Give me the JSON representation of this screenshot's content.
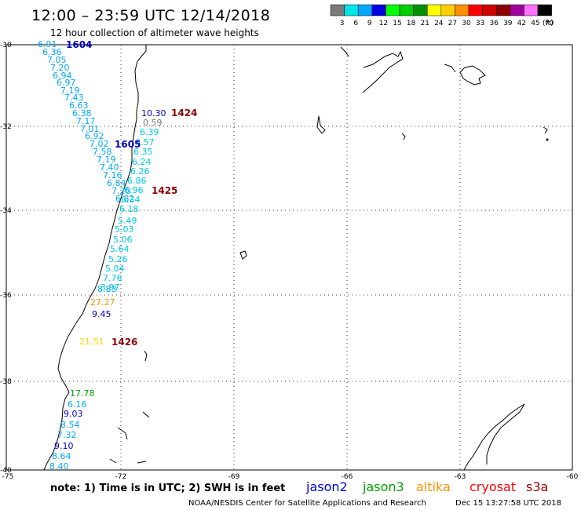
{
  "header": {
    "title": "12:00 – 23:59 UTC 12/14/2018",
    "subtitle": "12 hour collection of altimeter wave heights"
  },
  "color_scale": {
    "labels": [
      "3",
      "6",
      "9",
      "12",
      "15",
      "18",
      "21",
      "24",
      "27",
      "30",
      "33",
      "36",
      "39",
      "42",
      "45",
      "70"
    ],
    "unit": "(ft)",
    "colors": [
      "#7a7a7a",
      "#00e5e5",
      "#00a8ff",
      "#0000e0",
      "#00ff00",
      "#00d000",
      "#009000",
      "#ffff00",
      "#ffd000",
      "#ff9000",
      "#ff0000",
      "#d00000",
      "#900000",
      "#a000a0",
      "#ff70ff",
      "#000000"
    ]
  },
  "axes": {
    "lon_labels": [
      "-75",
      "-72",
      "-69",
      "-66",
      "-63",
      "-60"
    ],
    "lat_labels": [
      "-30",
      "-32",
      "-34",
      "-36",
      "-38",
      "-40"
    ]
  },
  "observations": [
    {
      "t": "6.91",
      "c": "#00a8ff"
    },
    {
      "t": "6.36",
      "c": "#00a8ff"
    },
    {
      "t": "7.05",
      "c": "#00a8ff"
    },
    {
      "t": "7.20",
      "c": "#00a8ff"
    },
    {
      "t": "6.94",
      "c": "#00a8ff"
    },
    {
      "t": "6.97",
      "c": "#00a8ff"
    },
    {
      "t": "7.19",
      "c": "#00a8ff"
    },
    {
      "t": "7.43",
      "c": "#00a8ff"
    },
    {
      "t": "6.63",
      "c": "#00a8ff"
    },
    {
      "t": "6.38",
      "c": "#00a8ff"
    },
    {
      "t": "7.17",
      "c": "#00a8ff"
    },
    {
      "t": "7.01",
      "c": "#00a8ff"
    },
    {
      "t": "6.92",
      "c": "#00a8ff"
    },
    {
      "t": "7.02",
      "c": "#00a8ff"
    },
    {
      "t": "7.58",
      "c": "#00a8ff"
    },
    {
      "t": "7.19",
      "c": "#00a8ff"
    },
    {
      "t": "7.40",
      "c": "#00a8ff"
    },
    {
      "t": "7.16",
      "c": "#00a8ff"
    },
    {
      "t": "6.84",
      "c": "#00a8ff"
    },
    {
      "t": "7.20",
      "c": "#00a8ff"
    },
    {
      "t": "6.82",
      "c": "#00a8ff"
    },
    {
      "t": "10.30",
      "c": "#0000c0"
    },
    {
      "t": "0.59",
      "c": "#7a7a7a"
    },
    {
      "t": "6.39",
      "c": "#00c8e8"
    },
    {
      "t": "6.57",
      "c": "#00c8e8"
    },
    {
      "t": "6.35",
      "c": "#00c8e8"
    },
    {
      "t": "6.24",
      "c": "#00c8e8"
    },
    {
      "t": "6.26",
      "c": "#00c8e8"
    },
    {
      "t": "6.86",
      "c": "#00c8e8"
    },
    {
      "t": "6.96",
      "c": "#00c8e8"
    },
    {
      "t": "6.34",
      "c": "#00c8e8"
    },
    {
      "t": "6.18",
      "c": "#00c8e8"
    },
    {
      "t": "5.49",
      "c": "#00c8e8"
    },
    {
      "t": "5.03",
      "c": "#00c8e8"
    },
    {
      "t": "5.06",
      "c": "#00c8e8"
    },
    {
      "t": "5.64",
      "c": "#00c8e8"
    },
    {
      "t": "5.26",
      "c": "#00c8e8"
    },
    {
      "t": "5.04",
      "c": "#00c8e8"
    },
    {
      "t": "7.76",
      "c": "#00c8e8"
    },
    {
      "t": "3.97",
      "c": "#00c8e8"
    },
    {
      "t": "8.83",
      "c": "#00a8ff"
    },
    {
      "t": "27.27",
      "c": "#ff9000"
    },
    {
      "t": "9.45",
      "c": "#0000c0"
    },
    {
      "t": "21.51",
      "c": "#ffd800"
    },
    {
      "t": "17.78",
      "c": "#00a000"
    },
    {
      "t": "6.16",
      "c": "#00a8ff"
    },
    {
      "t": "9.03",
      "c": "#0000c0"
    },
    {
      "t": "8.54",
      "c": "#00a8ff"
    },
    {
      "t": "7.32",
      "c": "#00a8ff"
    },
    {
      "t": "9.10",
      "c": "#0000c0"
    },
    {
      "t": "8.64",
      "c": "#00a8ff"
    },
    {
      "t": "8.40",
      "c": "#00a8ff"
    }
  ],
  "passes": [
    {
      "t": "1604",
      "c": "#0000c0"
    },
    {
      "t": "1605",
      "c": "#0000c0"
    },
    {
      "t": "1424",
      "c": "#900000"
    },
    {
      "t": "1425",
      "c": "#900000"
    },
    {
      "t": "1426",
      "c": "#900000"
    }
  ],
  "note": "note:  1) Time is in UTC;  2) SWH is in feet",
  "satellite_legend": [
    {
      "name": "jason2",
      "color": "#0000e0"
    },
    {
      "name": "jason3",
      "color": "#00a000"
    },
    {
      "name": "altika",
      "color": "#ff9000"
    },
    {
      "name": "cryosat",
      "color": "#ff0000"
    },
    {
      "name": "s3a",
      "color": "#900000"
    }
  ],
  "footer": {
    "credit": "NOAA/NESDIS Center for Satellite Applications and Research",
    "timestamp": "Dec 15 13:27:58 UTC 2018"
  }
}
